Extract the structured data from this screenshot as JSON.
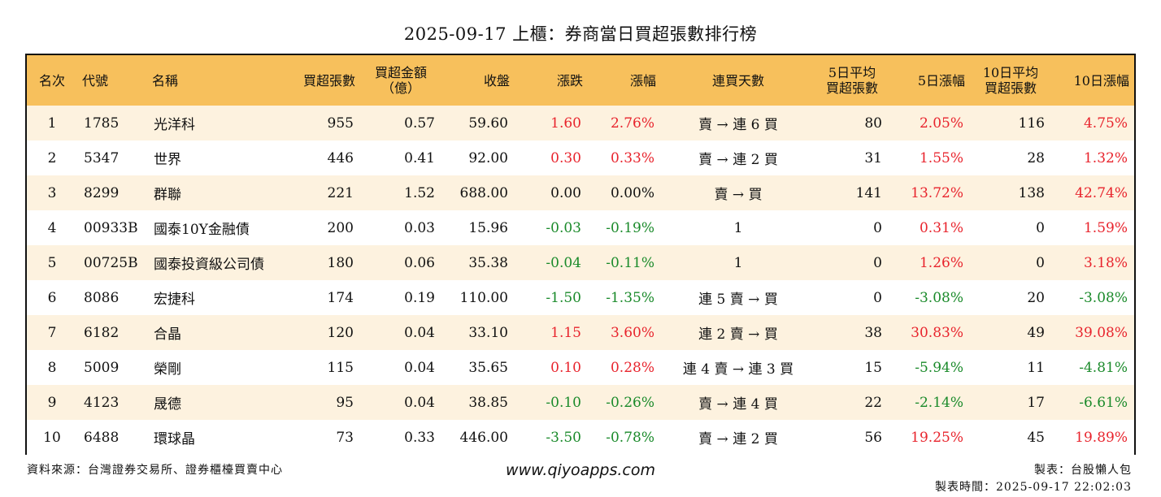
{
  "title": "2025-09-17 上櫃：券商當日買超張數排行榜",
  "headers": [
    "名次",
    "代號",
    "名稱",
    "買超張數",
    "買超金額\n（億）",
    "收盤",
    "漲跌",
    "漲幅",
    "連買天數",
    "5日平均\n買超張數",
    "5日漲幅",
    "10日平均\n買超張數",
    "10日漲幅"
  ],
  "rows": [
    {
      "rank": "1",
      "code": "1785",
      "name": "光洋科",
      "net_buy": "955",
      "amount": "0.57",
      "close": "59.60",
      "change": "1.60",
      "pct": "2.76%",
      "streak": "賣 → 連 6 買",
      "avg5": "80",
      "pct5": "2.05%",
      "avg10": "116",
      "pct10": "4.75%"
    },
    {
      "rank": "2",
      "code": "5347",
      "name": "世界",
      "net_buy": "446",
      "amount": "0.41",
      "close": "92.00",
      "change": "0.30",
      "pct": "0.33%",
      "streak": "賣 → 連 2 買",
      "avg5": "31",
      "pct5": "1.55%",
      "avg10": "28",
      "pct10": "1.32%"
    },
    {
      "rank": "3",
      "code": "8299",
      "name": "群聯",
      "net_buy": "221",
      "amount": "1.52",
      "close": "688.00",
      "change": "0.00",
      "pct": "0.00%",
      "streak": "賣 → 買",
      "avg5": "141",
      "pct5": "13.72%",
      "avg10": "138",
      "pct10": "42.74%"
    },
    {
      "rank": "4",
      "code": "00933B",
      "name": "國泰10Y金融債",
      "net_buy": "200",
      "amount": "0.03",
      "close": "15.96",
      "change": "-0.03",
      "pct": "-0.19%",
      "streak": "1",
      "avg5": "0",
      "pct5": "0.31%",
      "avg10": "0",
      "pct10": "1.59%"
    },
    {
      "rank": "5",
      "code": "00725B",
      "name": "國泰投資級公司債",
      "net_buy": "180",
      "amount": "0.06",
      "close": "35.38",
      "change": "-0.04",
      "pct": "-0.11%",
      "streak": "1",
      "avg5": "0",
      "pct5": "1.26%",
      "avg10": "0",
      "pct10": "3.18%"
    },
    {
      "rank": "6",
      "code": "8086",
      "name": "宏捷科",
      "net_buy": "174",
      "amount": "0.19",
      "close": "110.00",
      "change": "-1.50",
      "pct": "-1.35%",
      "streak": "連 5 賣 → 買",
      "avg5": "0",
      "pct5": "-3.08%",
      "avg10": "20",
      "pct10": "-3.08%"
    },
    {
      "rank": "7",
      "code": "6182",
      "name": "合晶",
      "net_buy": "120",
      "amount": "0.04",
      "close": "33.10",
      "change": "1.15",
      "pct": "3.60%",
      "streak": "連 2 賣 → 買",
      "avg5": "38",
      "pct5": "30.83%",
      "avg10": "49",
      "pct10": "39.08%"
    },
    {
      "rank": "8",
      "code": "5009",
      "name": "榮剛",
      "net_buy": "115",
      "amount": "0.04",
      "close": "35.65",
      "change": "0.10",
      "pct": "0.28%",
      "streak": "連 4 賣 → 連 3 買",
      "avg5": "15",
      "pct5": "-5.94%",
      "avg10": "11",
      "pct10": "-4.81%"
    },
    {
      "rank": "9",
      "code": "4123",
      "name": "晟德",
      "net_buy": "95",
      "amount": "0.04",
      "close": "38.85",
      "change": "-0.10",
      "pct": "-0.26%",
      "streak": "賣 → 連 4 買",
      "avg5": "22",
      "pct5": "-2.14%",
      "avg10": "17",
      "pct10": "-6.61%"
    },
    {
      "rank": "10",
      "code": "6488",
      "name": "環球晶",
      "net_buy": "73",
      "amount": "0.33",
      "close": "446.00",
      "change": "-3.50",
      "pct": "-0.78%",
      "streak": "賣 → 連 2 買",
      "avg5": "56",
      "pct5": "19.25%",
      "avg10": "45",
      "pct10": "19.89%"
    }
  ],
  "footer": {
    "source": "資料來源：台灣證券交易所、證券櫃檯買賣中心",
    "website": "www.qiyoapps.com",
    "maker": "製表：台股懶人包",
    "made_time": "製表時間：2025-09-17 22:02:03"
  },
  "colors": {
    "header_bg": "#f7c05c",
    "stripe": "#fdf2df",
    "up": "#e8242d",
    "down": "#1a8a2a"
  }
}
